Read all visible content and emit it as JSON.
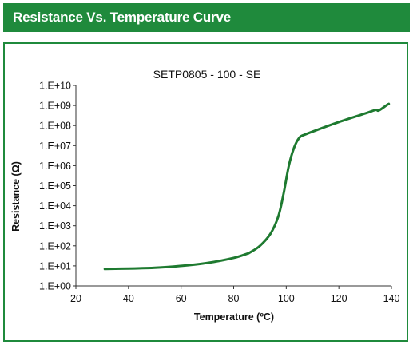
{
  "header": {
    "title": "Resistance Vs. Temperature Curve"
  },
  "colors": {
    "brand": "#1f8a3c",
    "curve": "#1e7a30"
  },
  "chart_data": {
    "type": "line",
    "title": "SETP0805 - 100 - SE",
    "xlabel": "Temperature (ºC)",
    "ylabel": "Resistance (Ω)",
    "xlim": [
      20,
      140
    ],
    "ylim": [
      1,
      10000000000
    ],
    "y_scale": "log",
    "grid": false,
    "xticks": [
      20,
      40,
      60,
      80,
      100,
      120,
      140
    ],
    "yticks": [
      "1.E+00",
      "1.E+01",
      "1.E+02",
      "1.E+03",
      "1.E+04",
      "1.E+05",
      "1.E+06",
      "1.E+07",
      "1.E+08",
      "1.E+09",
      "1.E+10"
    ],
    "series": [
      {
        "x": [
          31,
          40,
          50,
          60,
          70,
          80,
          85,
          86,
          90,
          94,
          97,
          99,
          101,
          103,
          105,
          107,
          110,
          120,
          130,
          134,
          135,
          137,
          138,
          139
        ],
        "y": [
          7,
          7.4,
          8,
          10,
          14,
          25,
          40,
          45,
          100,
          400,
          3000,
          40000,
          1000000,
          8000000,
          25000000,
          35000000,
          50000000,
          150000000,
          400000000,
          600000000,
          550000000,
          800000000,
          1000000000,
          1200000000
        ]
      }
    ]
  }
}
